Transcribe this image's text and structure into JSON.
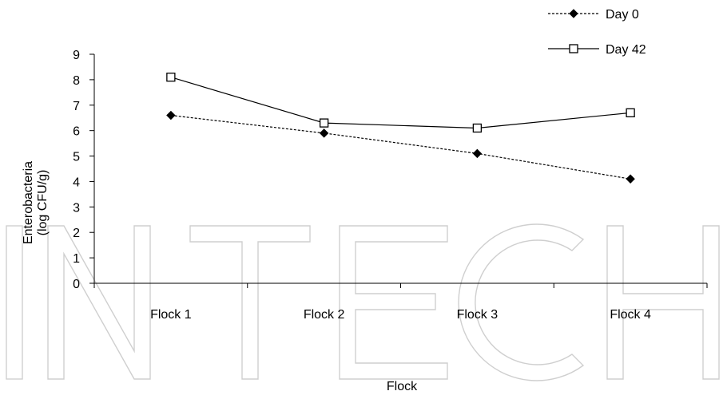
{
  "chart_data": {
    "type": "line",
    "categories": [
      "Flock 1",
      "Flock 2",
      "Flock 3",
      "Flock 4"
    ],
    "series": [
      {
        "name": "Day 0",
        "values": [
          6.6,
          5.9,
          5.1,
          4.1
        ],
        "color": "#000000",
        "line_style": "dashed",
        "marker": "filled-diamond"
      },
      {
        "name": "Day 42",
        "values": [
          8.1,
          6.3,
          6.1,
          6.7
        ],
        "color": "#000000",
        "line_style": "solid",
        "marker": "open-square"
      }
    ],
    "xlabel": "Flock",
    "ylabel": [
      "Enterobacteria",
      "(log CFU/g)"
    ],
    "ylim": [
      0,
      9
    ],
    "yticks": [
      "0",
      "1",
      "2",
      "3",
      "4",
      "5",
      "6",
      "7",
      "8",
      "9"
    ],
    "grid": false,
    "legend_position": "top-right"
  },
  "watermark_text": "INTECH"
}
